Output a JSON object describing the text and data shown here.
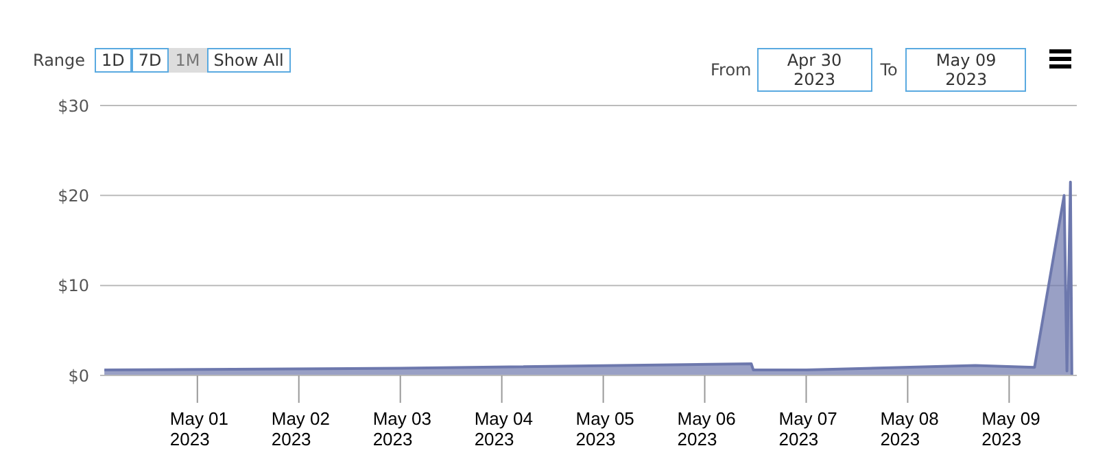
{
  "chart_data": {
    "type": "area",
    "annotations": [
      "Range",
      "1D",
      "7D",
      "1M",
      "Show All",
      "From",
      "Apr 30 2023",
      "To",
      "May 09 2023"
    ],
    "x": [
      "2023-04-30T02:00",
      "2023-05-03T00:00",
      "2023-05-06T11:00",
      "2023-05-06T11:30",
      "2023-05-07T00:00",
      "2023-05-08T16:00",
      "2023-05-09T06:00",
      "2023-05-09T13:00",
      "2023-05-09T13:40",
      "2023-05-09T14:30",
      "2023-05-09T14:50"
    ],
    "series": [
      {
        "color": "#6d78ad",
        "values": [
          0.6,
          0.8,
          1.3,
          0.6,
          0.6,
          1.1,
          0.9,
          20,
          0.5,
          21.5,
          0
        ]
      }
    ],
    "xlim": [
      "2023-04-30T01:00",
      "2023-05-09T16:00"
    ],
    "xticks": [
      {
        "value": "2023-05-01",
        "label": "May 01 2023"
      },
      {
        "value": "2023-05-02",
        "label": "May 02 2023"
      },
      {
        "value": "2023-05-03",
        "label": "May 03 2023"
      },
      {
        "value": "2023-05-04",
        "label": "May 04 2023"
      },
      {
        "value": "2023-05-05",
        "label": "May 05 2023"
      },
      {
        "value": "2023-05-06",
        "label": "May 06 2023"
      },
      {
        "value": "2023-05-07",
        "label": "May 07 2023"
      },
      {
        "value": "2023-05-08",
        "label": "May 08 2023"
      },
      {
        "value": "2023-05-09",
        "label": "May 09 2023"
      }
    ],
    "ylim": [
      0,
      30
    ],
    "yticks": [
      {
        "value": 0,
        "label": "$0"
      },
      {
        "value": 10,
        "label": "$10"
      },
      {
        "value": 20,
        "label": "$20"
      },
      {
        "value": 30,
        "label": "$30"
      }
    ],
    "grid": "y"
  }
}
